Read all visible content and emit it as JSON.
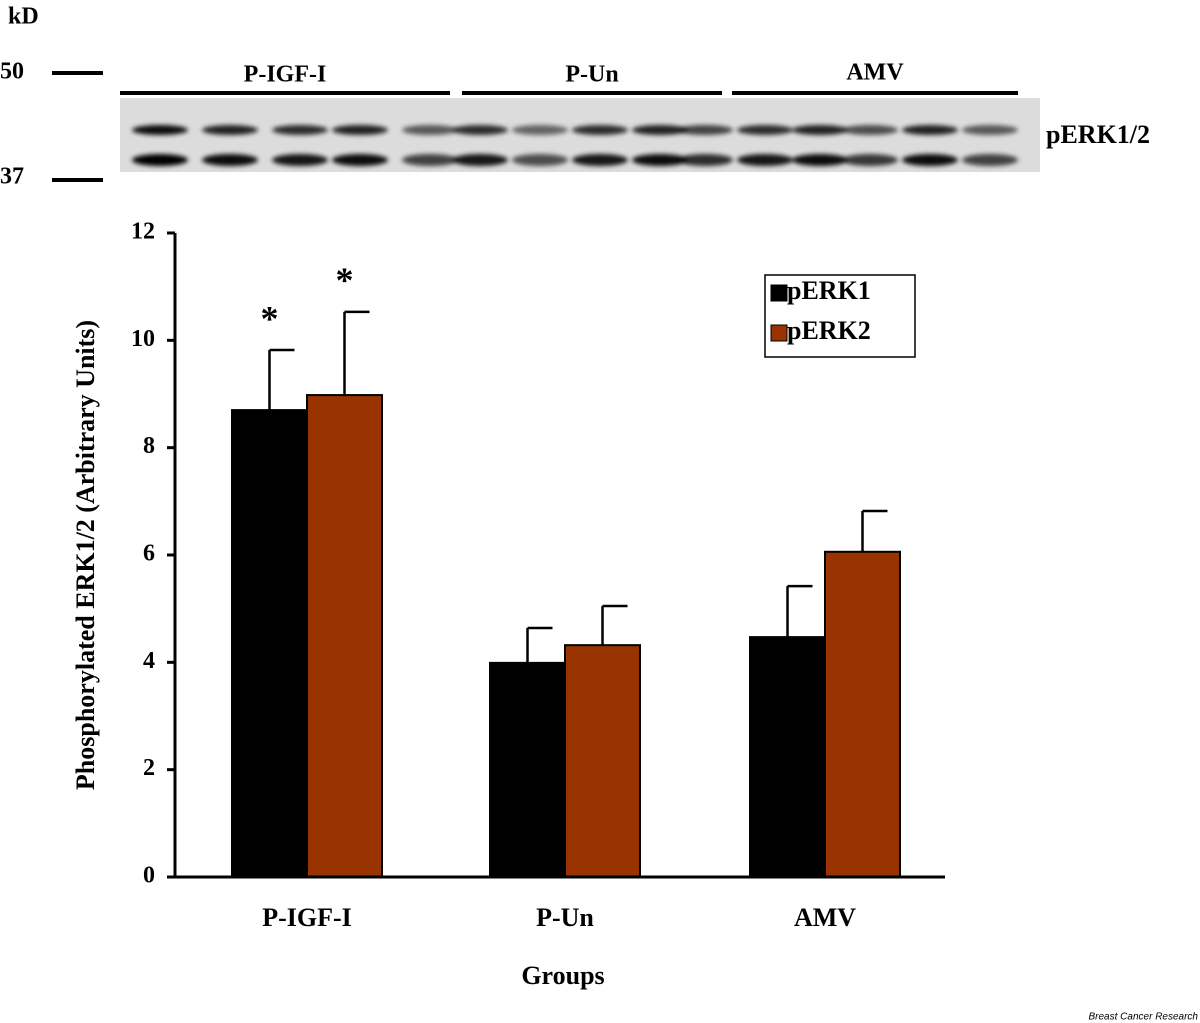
{
  "blot": {
    "unit": "kD",
    "markers": [
      "50",
      "37"
    ],
    "lanes": [
      "P-IGF-I",
      "P-Un",
      "AMV"
    ],
    "label": "pERK1/2"
  },
  "chart_data": {
    "type": "bar",
    "ylabel": "Phosphorylated ERK1/2 (Arbitrary Units)",
    "xlabel": "Groups",
    "categories": [
      "P-IGF-I",
      "P-Un",
      "AMV"
    ],
    "series": [
      {
        "name": "pERK1",
        "color": "#000000",
        "values": [
          8.7,
          3.99,
          4.47
        ],
        "errors": [
          1.12,
          0.65,
          0.95
        ],
        "markers": [
          "*",
          null,
          null
        ]
      },
      {
        "name": "pERK2",
        "color": "#993300",
        "values": [
          8.98,
          4.32,
          6.06
        ],
        "errors": [
          1.55,
          0.73,
          0.76
        ],
        "markers": [
          "*",
          null,
          null
        ]
      }
    ],
    "ylim": [
      0,
      12
    ],
    "yticks": [
      0,
      2,
      4,
      6,
      8,
      10,
      12
    ],
    "grid": false,
    "legend": "upper right"
  },
  "source": "Breast Cancer Research"
}
